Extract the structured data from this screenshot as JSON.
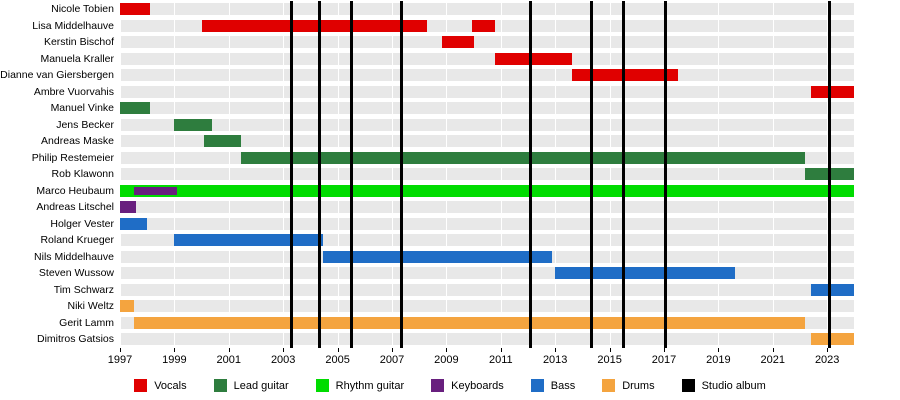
{
  "chart_data": {
    "type": "timeline",
    "description": "Band members timeline (Gantt-style) with membership bars by instrument and vertical lines marking studio albums",
    "x_axis": {
      "start": 1997,
      "end": 2024,
      "ticks": [
        1997,
        1999,
        2001,
        2003,
        2005,
        2007,
        2009,
        2011,
        2013,
        2015,
        2017,
        2019,
        2021,
        2023
      ]
    },
    "roles": {
      "vocals": {
        "label": "Vocals",
        "color": "#e00000"
      },
      "lead_guitar": {
        "label": "Lead guitar",
        "color": "#2e7d3e"
      },
      "rhythm_guitar": {
        "label": "Rhythm guitar",
        "color": "#00dc00"
      },
      "keyboards": {
        "label": "Keyboards",
        "color": "#681f7e"
      },
      "bass": {
        "label": "Bass",
        "color": "#1f6dc6"
      },
      "drums": {
        "label": "Drums",
        "color": "#f4a43f"
      },
      "studio_album": {
        "label": "Studio album",
        "color": "#000000"
      }
    },
    "legend_order": [
      "vocals",
      "lead_guitar",
      "rhythm_guitar",
      "keyboards",
      "bass",
      "drums",
      "studio_album"
    ],
    "row_band_color": "#e8e8e8",
    "members": [
      {
        "name": "Nicole Tobien",
        "bars": [
          {
            "role": "vocals",
            "start": 1997.0,
            "end": 1998.1
          }
        ]
      },
      {
        "name": "Lisa Middelhauve",
        "bars": [
          {
            "role": "vocals",
            "start": 2000.0,
            "end": 2008.3
          },
          {
            "role": "vocals",
            "start": 2009.95,
            "end": 2010.8
          }
        ]
      },
      {
        "name": "Kerstin Bischof",
        "bars": [
          {
            "role": "vocals",
            "start": 2008.85,
            "end": 2010.0
          }
        ]
      },
      {
        "name": "Manuela Kraller",
        "bars": [
          {
            "role": "vocals",
            "start": 2010.8,
            "end": 2013.6
          }
        ]
      },
      {
        "name": "Dianne van Giersbergen",
        "bars": [
          {
            "role": "vocals",
            "start": 2013.6,
            "end": 2017.5
          }
        ]
      },
      {
        "name": "Ambre Vuorvahis",
        "bars": [
          {
            "role": "vocals",
            "start": 2022.4,
            "end": 2024.0
          }
        ]
      },
      {
        "name": "Manuel Vinke",
        "bars": [
          {
            "role": "lead_guitar",
            "start": 1997.0,
            "end": 1998.1
          }
        ]
      },
      {
        "name": "Jens Becker",
        "bars": [
          {
            "role": "lead_guitar",
            "start": 1999.0,
            "end": 2000.4
          }
        ]
      },
      {
        "name": "Andreas Maske",
        "bars": [
          {
            "role": "lead_guitar",
            "start": 2000.1,
            "end": 2001.45
          }
        ]
      },
      {
        "name": "Philip Restemeier",
        "bars": [
          {
            "role": "lead_guitar",
            "start": 2001.45,
            "end": 2022.2
          }
        ]
      },
      {
        "name": "Rob Klawonn",
        "bars": [
          {
            "role": "lead_guitar",
            "start": 2022.2,
            "end": 2024.0
          }
        ]
      },
      {
        "name": "Marco Heubaum",
        "bars": [
          {
            "role": "rhythm_guitar",
            "start": 1997.0,
            "end": 2024.0
          },
          {
            "role": "keyboards",
            "start": 1997.5,
            "end": 1999.1,
            "overlay": true
          }
        ]
      },
      {
        "name": "Andreas Litschel",
        "bars": [
          {
            "role": "keyboards",
            "start": 1997.0,
            "end": 1997.6
          }
        ]
      },
      {
        "name": "Holger Vester",
        "bars": [
          {
            "role": "bass",
            "start": 1997.0,
            "end": 1998.0
          }
        ]
      },
      {
        "name": "Roland Krueger",
        "bars": [
          {
            "role": "bass",
            "start": 1999.0,
            "end": 2004.45
          }
        ]
      },
      {
        "name": "Nils Middelhauve",
        "bars": [
          {
            "role": "bass",
            "start": 2004.45,
            "end": 2012.9
          }
        ]
      },
      {
        "name": "Steven Wussow",
        "bars": [
          {
            "role": "bass",
            "start": 2013.0,
            "end": 2019.6
          }
        ]
      },
      {
        "name": "Tim Schwarz",
        "bars": [
          {
            "role": "bass",
            "start": 2022.4,
            "end": 2024.0
          }
        ]
      },
      {
        "name": "Niki Weltz",
        "bars": [
          {
            "role": "drums",
            "start": 1997.0,
            "end": 1997.5
          }
        ]
      },
      {
        "name": "Gerit Lamm",
        "bars": [
          {
            "role": "drums",
            "start": 1997.5,
            "end": 2022.2
          }
        ]
      },
      {
        "name": "Dimitros Gatsios",
        "bars": [
          {
            "role": "drums",
            "start": 2022.4,
            "end": 2024.0
          }
        ]
      }
    ],
    "albums": [
      2003.3,
      2004.35,
      2005.5,
      2007.35,
      2012.1,
      2014.35,
      2015.5,
      2017.05,
      2023.1
    ]
  }
}
